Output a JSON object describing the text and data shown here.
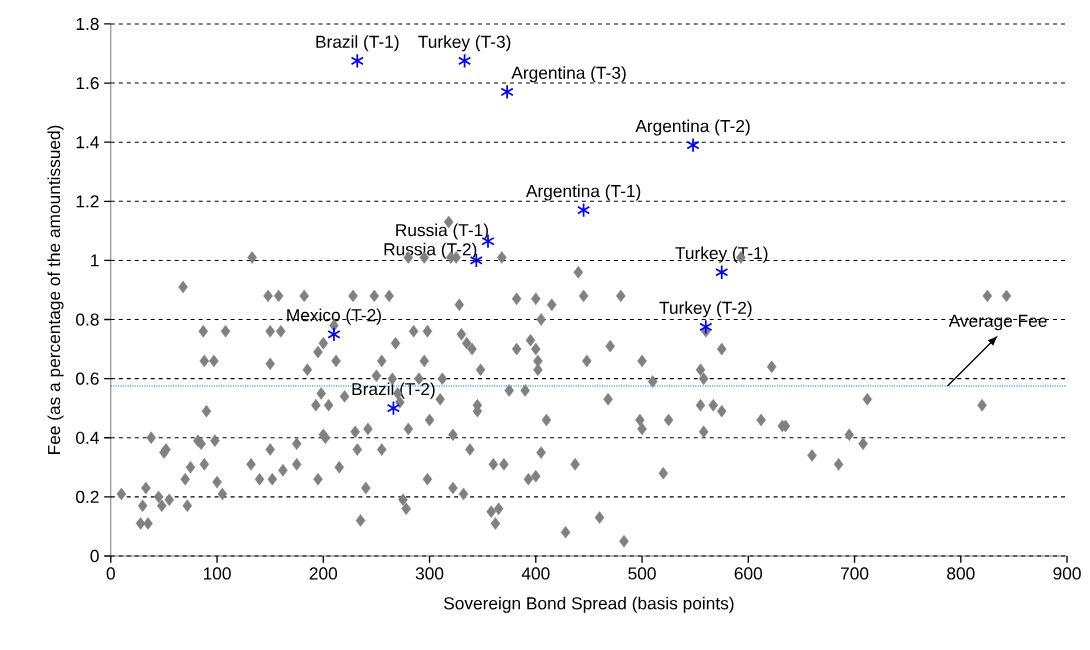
{
  "chart_data": {
    "type": "scatter",
    "xlabel": "Sovereign Bond Spread (basis points)",
    "ylabel": "Fee (as a percentage of the amountissued)",
    "xlim": [
      0,
      900
    ],
    "ylim": [
      0,
      1.8
    ],
    "xticks": [
      0,
      100,
      200,
      300,
      400,
      500,
      600,
      700,
      800,
      900
    ],
    "yticks": [
      0,
      0.2,
      0.4,
      0.6,
      0.8,
      1,
      1.2,
      1.4,
      1.6,
      1.8
    ],
    "grid": "y",
    "series": [
      {
        "color": "#808080",
        "marker": "diamond",
        "x": [
          10,
          28,
          30,
          33,
          35,
          38,
          45,
          48,
          50,
          52,
          55,
          68,
          70,
          72,
          75,
          82,
          85,
          88,
          87,
          88,
          90,
          98,
          97,
          100,
          105,
          108,
          132,
          133,
          140,
          148,
          150,
          150,
          150,
          152,
          158,
          160,
          162,
          175,
          175,
          182,
          185,
          193,
          195,
          195,
          198,
          200,
          200,
          202,
          205,
          210,
          212,
          215,
          220,
          228,
          230,
          232,
          235,
          240,
          242,
          248,
          250,
          255,
          255,
          262,
          265,
          268,
          270,
          272,
          275,
          278,
          280,
          280,
          285,
          290,
          295,
          295,
          298,
          298,
          300,
          310,
          312,
          318,
          320,
          322,
          322,
          325,
          328,
          330,
          332,
          335,
          338,
          340,
          345,
          345,
          348,
          358,
          360,
          362,
          365,
          368,
          370,
          375,
          382,
          382,
          390,
          393,
          395,
          400,
          400,
          400,
          402,
          402,
          405,
          405,
          410,
          415,
          428,
          437,
          440,
          445,
          448,
          460,
          468,
          470,
          480,
          483,
          498,
          500,
          500,
          510,
          520,
          525,
          555,
          555,
          558,
          558,
          560,
          567,
          575,
          575,
          593,
          612,
          622,
          632,
          635,
          660,
          685,
          695,
          708,
          712,
          820,
          825,
          843
        ],
        "values": [
          0.21,
          0.11,
          0.17,
          0.23,
          0.11,
          0.4,
          0.2,
          0.17,
          0.35,
          0.36,
          0.19,
          0.91,
          0.26,
          0.17,
          0.3,
          0.39,
          0.38,
          0.31,
          0.76,
          0.66,
          0.49,
          0.39,
          0.66,
          0.25,
          0.21,
          0.76,
          0.31,
          1.01,
          0.26,
          0.88,
          0.76,
          0.65,
          0.36,
          0.26,
          0.88,
          0.76,
          0.29,
          0.31,
          0.38,
          0.88,
          0.63,
          0.51,
          0.26,
          0.69,
          0.55,
          0.72,
          0.41,
          0.4,
          0.51,
          0.78,
          0.66,
          0.3,
          0.54,
          0.88,
          0.42,
          0.36,
          0.12,
          0.23,
          0.43,
          0.88,
          0.61,
          0.36,
          0.66,
          0.88,
          0.6,
          0.72,
          0.55,
          0.52,
          0.19,
          0.16,
          0.43,
          1.01,
          0.76,
          0.6,
          1.01,
          0.66,
          0.26,
          0.76,
          0.46,
          0.53,
          0.6,
          1.13,
          1.01,
          0.23,
          0.41,
          1.01,
          0.85,
          0.75,
          0.21,
          0.72,
          0.36,
          0.7,
          0.49,
          0.51,
          0.63,
          0.15,
          0.31,
          0.11,
          0.16,
          1.01,
          0.31,
          0.56,
          0.87,
          0.7,
          0.56,
          0.26,
          0.73,
          0.87,
          0.7,
          0.27,
          0.66,
          0.63,
          0.35,
          0.8,
          0.46,
          0.85,
          0.08,
          0.31,
          0.96,
          0.88,
          0.66,
          0.13,
          0.53,
          0.71,
          0.88,
          0.05,
          0.46,
          0.43,
          0.66,
          0.59,
          0.28,
          0.46,
          0.63,
          0.51,
          0.6,
          0.42,
          0.76,
          0.51,
          0.49,
          0.7,
          1.01,
          0.46,
          0.64,
          0.44,
          0.44,
          0.34,
          0.31,
          0.41,
          0.38,
          0.53,
          0.51,
          0.88,
          0.88
        ]
      },
      {
        "color": "#0000ff",
        "marker": "cross",
        "x": [
          232,
          333,
          373,
          548,
          445,
          355,
          344,
          575,
          210,
          560,
          266
        ],
        "values": [
          1.675,
          1.675,
          1.57,
          1.39,
          1.17,
          1.065,
          1.0,
          0.96,
          0.75,
          0.775,
          0.5
        ]
      }
    ],
    "ref_lines": [
      {
        "axis": "y",
        "value": 0.575,
        "label": "Average Fee",
        "color": "#0070c0",
        "line_style": "dotted"
      }
    ],
    "annotations": [
      {
        "text": "Brazil (T-1)",
        "x": 232,
        "y": 1.675
      },
      {
        "text": "Turkey  (T-3)",
        "x": 333,
        "y": 1.675
      },
      {
        "text": "Argentina (T-3)",
        "x": 373,
        "y": 1.57
      },
      {
        "text": "Argentina (T-2)",
        "x": 548,
        "y": 1.39
      },
      {
        "text": "Argentina (T-1)",
        "x": 445,
        "y": 1.17
      },
      {
        "text": "Russia (T-1)",
        "x": 355,
        "y": 1.065
      },
      {
        "text": "Russia (T-2)",
        "x": 344,
        "y": 1.0
      },
      {
        "text": "Turkey  (T-1)",
        "x": 575,
        "y": 0.96
      },
      {
        "text": "Mexico (T-2)",
        "x": 210,
        "y": 0.75
      },
      {
        "text": "Turkey  (T-2)",
        "x": 560,
        "y": 0.775
      },
      {
        "text": "Brazil (T-2)",
        "x": 266,
        "y": 0.5
      }
    ]
  }
}
